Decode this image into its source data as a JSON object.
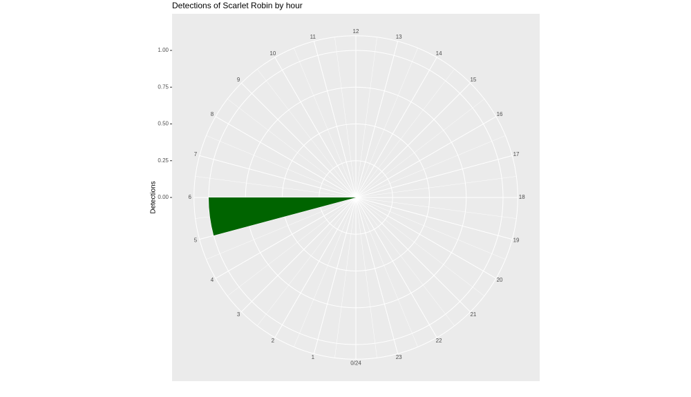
{
  "chart_data": {
    "type": "polar-bar",
    "title": "Detections of Scarlet Robin by hour",
    "y_label": "Detections",
    "x": [
      5
    ],
    "values": [
      1
    ],
    "color": "#006400",
    "xlim": [
      0,
      24
    ],
    "xticks": [
      {
        "value": 0,
        "label": "0/24"
      },
      1,
      2,
      3,
      4,
      5,
      6,
      7,
      8,
      9,
      10,
      11,
      12,
      13,
      14,
      15,
      16,
      17,
      18,
      19,
      20,
      21,
      22,
      23
    ],
    "ylim": [
      0,
      1
    ],
    "yticks": [
      {
        "value": 0,
        "label": "0.00"
      },
      {
        "value": 0.25,
        "label": "0.25"
      },
      {
        "value": 0.5,
        "label": "0.50"
      },
      {
        "value": 0.75,
        "label": "0.75"
      },
      {
        "value": 1,
        "label": "1.00"
      }
    ],
    "grid": true
  }
}
